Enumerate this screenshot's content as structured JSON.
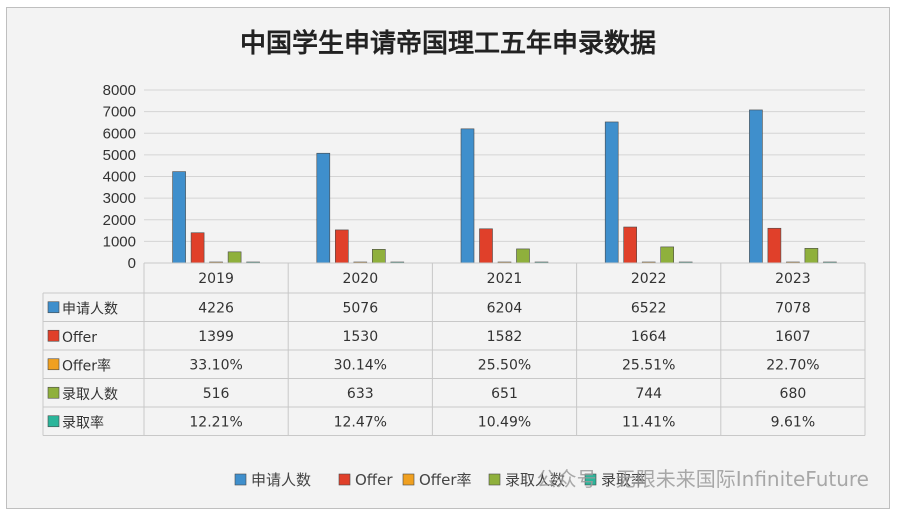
{
  "chart_data": {
    "type": "bar",
    "title": "中国学生申请帝国理工五年申录数据",
    "categories": [
      "2019",
      "2020",
      "2021",
      "2022",
      "2023"
    ],
    "ylim": [
      0,
      8000
    ],
    "yticks": [
      0,
      1000,
      2000,
      3000,
      4000,
      5000,
      6000,
      7000,
      8000
    ],
    "grid": true,
    "legend": "bottom",
    "series": [
      {
        "name": "申请人数",
        "values": [
          4226,
          5076,
          6204,
          6522,
          7078
        ],
        "labels": [
          "4226",
          "5076",
          "6204",
          "6522",
          "7078"
        ],
        "color": "#3f8fcc"
      },
      {
        "name": "Offer",
        "values": [
          1399,
          1530,
          1582,
          1664,
          1607
        ],
        "labels": [
          "1399",
          "1530",
          "1582",
          "1664",
          "1607"
        ],
        "color": "#e0402a"
      },
      {
        "name": "Offer率",
        "values": [
          33.1,
          30.14,
          25.5,
          25.51,
          22.7
        ],
        "labels": [
          "33.10%",
          "30.14%",
          "25.50%",
          "25.51%",
          "22.70%"
        ],
        "color": "#f0a020"
      },
      {
        "name": "录取人数",
        "values": [
          516,
          633,
          651,
          744,
          680
        ],
        "labels": [
          "516",
          "633",
          "651",
          "744",
          "680"
        ],
        "color": "#8fb03c"
      },
      {
        "name": "录取率",
        "values": [
          12.21,
          12.47,
          10.49,
          11.41,
          9.61
        ],
        "labels": [
          "12.21%",
          "12.47%",
          "10.49%",
          "11.41%",
          "9.61%"
        ],
        "color": "#2bb59a"
      }
    ]
  },
  "watermark": "公众号 · 无限未来国际InfiniteFuture"
}
